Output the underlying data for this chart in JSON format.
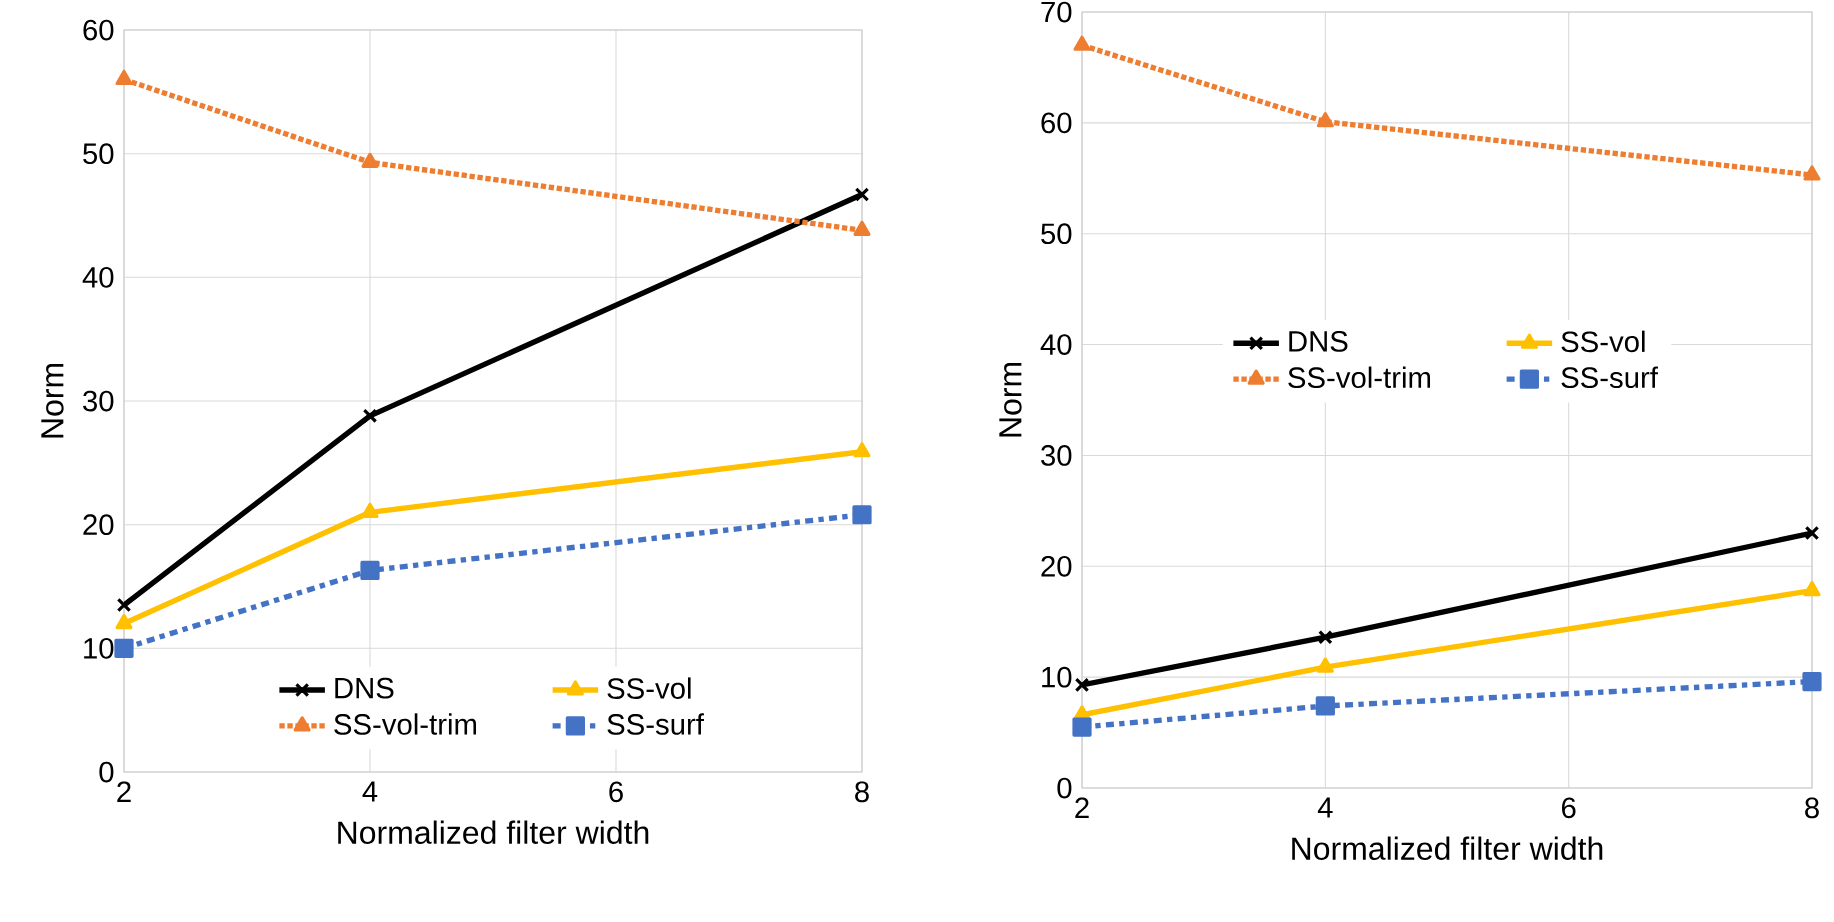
{
  "chart_data": [
    {
      "type": "line",
      "xlabel": "Normalized filter width",
      "ylabel": "Norm",
      "x": [
        2,
        4,
        8
      ],
      "xlim": [
        2,
        8
      ],
      "xticks": [
        2,
        4,
        6,
        8
      ],
      "ylim": [
        0,
        60
      ],
      "yticks": [
        0,
        10,
        20,
        30,
        40,
        50,
        60
      ],
      "grid": true,
      "legend": "bottom",
      "series": [
        {
          "name": "DNS",
          "color": "#000000",
          "values": [
            13.5,
            28.8,
            46.7
          ],
          "marker": "cross",
          "line_style": "solid"
        },
        {
          "name": "SS-vol",
          "color": "#ffc000",
          "values": [
            12,
            21,
            25.9
          ],
          "marker": "triangle",
          "line_style": "solid"
        },
        {
          "name": "SS-vol-trim",
          "color": "#ed7d31",
          "values": [
            56,
            49.3,
            43.8
          ],
          "marker": "triangle",
          "line_style": "dotted"
        },
        {
          "name": "SS-surf",
          "color": "#4472c4",
          "values": [
            10,
            16.3,
            20.8
          ],
          "marker": "square",
          "line_style": "dashdot"
        }
      ]
    },
    {
      "type": "line",
      "xlabel": "Normalized filter width",
      "ylabel": "Norm",
      "x": [
        2,
        4,
        8
      ],
      "xlim": [
        2,
        8
      ],
      "xticks": [
        2,
        4,
        6,
        8
      ],
      "ylim": [
        0,
        70
      ],
      "yticks": [
        0,
        10,
        20,
        30,
        40,
        50,
        60,
        70
      ],
      "grid": true,
      "legend": "center",
      "series": [
        {
          "name": "DNS",
          "color": "#000000",
          "values": [
            9.3,
            13.6,
            23
          ],
          "marker": "cross",
          "line_style": "solid"
        },
        {
          "name": "SS-vol",
          "color": "#ffc000",
          "values": [
            6.6,
            10.9,
            17.8
          ],
          "marker": "triangle",
          "line_style": "solid"
        },
        {
          "name": "SS-vol-trim",
          "color": "#ed7d31",
          "values": [
            67,
            60.1,
            55.3
          ],
          "marker": "triangle",
          "line_style": "dotted"
        },
        {
          "name": "SS-surf",
          "color": "#4472c4",
          "values": [
            5.5,
            7.4,
            9.6
          ],
          "marker": "square",
          "line_style": "dashdot"
        }
      ]
    }
  ]
}
